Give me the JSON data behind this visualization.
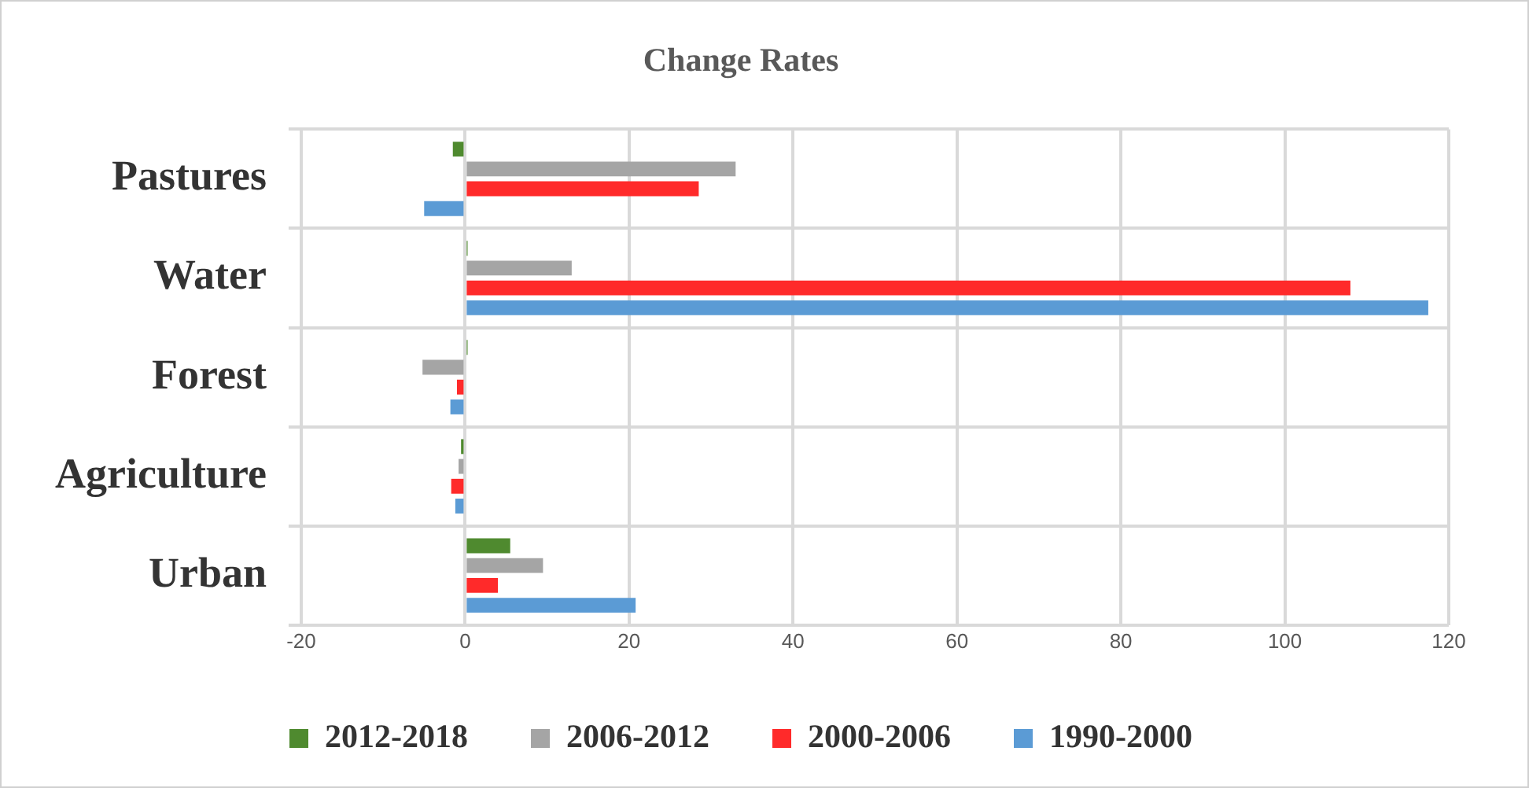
{
  "chart_data": {
    "type": "bar",
    "orientation": "horizontal",
    "title": "Change Rates",
    "categories": [
      "Pastures",
      "Water",
      "Forest",
      "Agriculture",
      "Urban"
    ],
    "series": [
      {
        "name": "2012-2018",
        "color": "#4f8a2f",
        "values": [
          -1.5,
          0.3,
          0.3,
          -0.5,
          5.5
        ]
      },
      {
        "name": "2006-2012",
        "color": "#a5a5a5",
        "values": [
          33,
          13,
          -5.2,
          -0.8,
          9.5
        ]
      },
      {
        "name": "2000-2006",
        "color": "#ff2a2a",
        "values": [
          28.5,
          108,
          -1,
          -1.7,
          4
        ]
      },
      {
        "name": "1990-2000",
        "color": "#5b9bd5",
        "values": [
          -5,
          117.5,
          -1.8,
          -1.2,
          20.8
        ]
      }
    ],
    "xlim": [
      -20,
      120
    ],
    "xticks": [
      -20,
      0,
      20,
      40,
      60,
      80,
      100,
      120
    ],
    "grid": true,
    "legend": "bottom"
  }
}
